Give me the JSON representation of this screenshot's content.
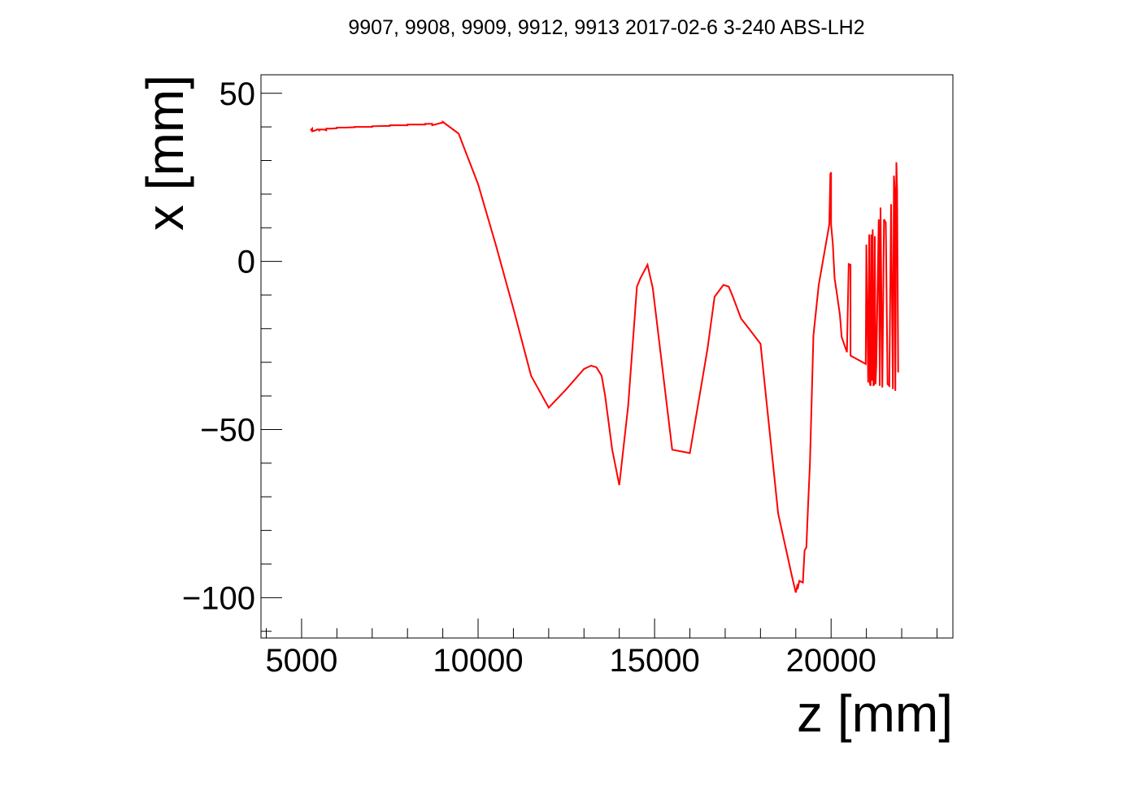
{
  "chart_data": {
    "type": "line",
    "title": "9907, 9908, 9909, 9912, 9913 2017-02-6 3-240 ABS-LH2",
    "xlabel": "z [mm]",
    "ylabel": "x [mm]",
    "xlim": [
      3850,
      23450
    ],
    "ylim": [
      -112,
      55.5
    ],
    "x_ticks": [
      5000,
      10000,
      15000,
      20000
    ],
    "y_ticks": [
      50,
      0,
      -50,
      -100
    ],
    "x_tick_labels": [
      "5000",
      "10000",
      "15000",
      "20000"
    ],
    "y_tick_labels": [
      "50",
      "0",
      "−50",
      "−100"
    ],
    "grid": false,
    "series": [
      {
        "color": "#ff0000",
        "x": [
          5250,
          5300,
          5300,
          5400,
          5450,
          5500,
          5500,
          5650,
          5700,
          5700,
          5850,
          6000,
          6000,
          6250,
          6500,
          6500,
          7000,
          7000,
          7500,
          7500,
          8000,
          8000,
          8500,
          8500,
          8700,
          8700,
          9000,
          9000,
          9450,
          10000,
          10500,
          11000,
          11500,
          12000,
          12500,
          13000,
          13200,
          13350,
          13500,
          13600,
          13800,
          14000,
          14250,
          14500,
          14600,
          14800,
          14950,
          15500,
          16000,
          16500,
          16700,
          16950,
          17100,
          17200,
          17450,
          17600,
          18000,
          18500,
          18900,
          19000,
          19050,
          19050,
          19100,
          19200,
          19250,
          19300,
          19350,
          19400,
          19500,
          19650,
          19950,
          19980,
          20000,
          20000,
          20050,
          20100,
          20150,
          20250,
          20300,
          20450,
          20500,
          20500,
          20550,
          20550,
          20980,
          21000,
          21050,
          21080,
          21100,
          21120,
          21140,
          21160,
          21180,
          21200,
          21220,
          21240,
          21260,
          21280,
          21350,
          21380,
          21400,
          21450,
          21500,
          21550,
          21600,
          21650,
          21700,
          21750,
          21780,
          21800,
          21820,
          21850,
          21870,
          21900
        ],
        "y": [
          39,
          39.5,
          38.7,
          39,
          39.3,
          39,
          39.2,
          39.2,
          39,
          39.5,
          39.5,
          39.6,
          39.8,
          39.8,
          39.9,
          40,
          40,
          40.2,
          40.3,
          40.5,
          40.5,
          40.7,
          40.7,
          40.9,
          40.9,
          40.5,
          41.3,
          41.5,
          38,
          23,
          5,
          -14,
          -34,
          -43.5,
          -38,
          -32,
          -31,
          -31.5,
          -34,
          -40,
          -56,
          -66.5,
          -43,
          -7.5,
          -5,
          -1,
          -8,
          -56,
          -57,
          -26,
          -10.5,
          -7,
          -7.5,
          -10,
          -17,
          -19,
          -24.5,
          -75,
          -94,
          -98.5,
          -96,
          -97.5,
          -95,
          -95.5,
          -86,
          -85,
          -72,
          -60,
          -22,
          -7,
          11,
          26,
          26.5,
          11,
          5,
          -5,
          -8.5,
          -16,
          -22.5,
          -27,
          -0.5,
          -1,
          -1,
          -28,
          -30.5,
          5,
          -36,
          8,
          -36.5,
          -37,
          8,
          -35.5,
          9.5,
          -37,
          -36.5,
          7.5,
          -36.5,
          -31,
          12.5,
          -37,
          16,
          -37.5,
          12.5,
          11.5,
          -36.5,
          -37,
          17,
          -38,
          25.5,
          21.5,
          -38.5,
          29.5,
          21.5,
          -33
        ]
      }
    ]
  }
}
